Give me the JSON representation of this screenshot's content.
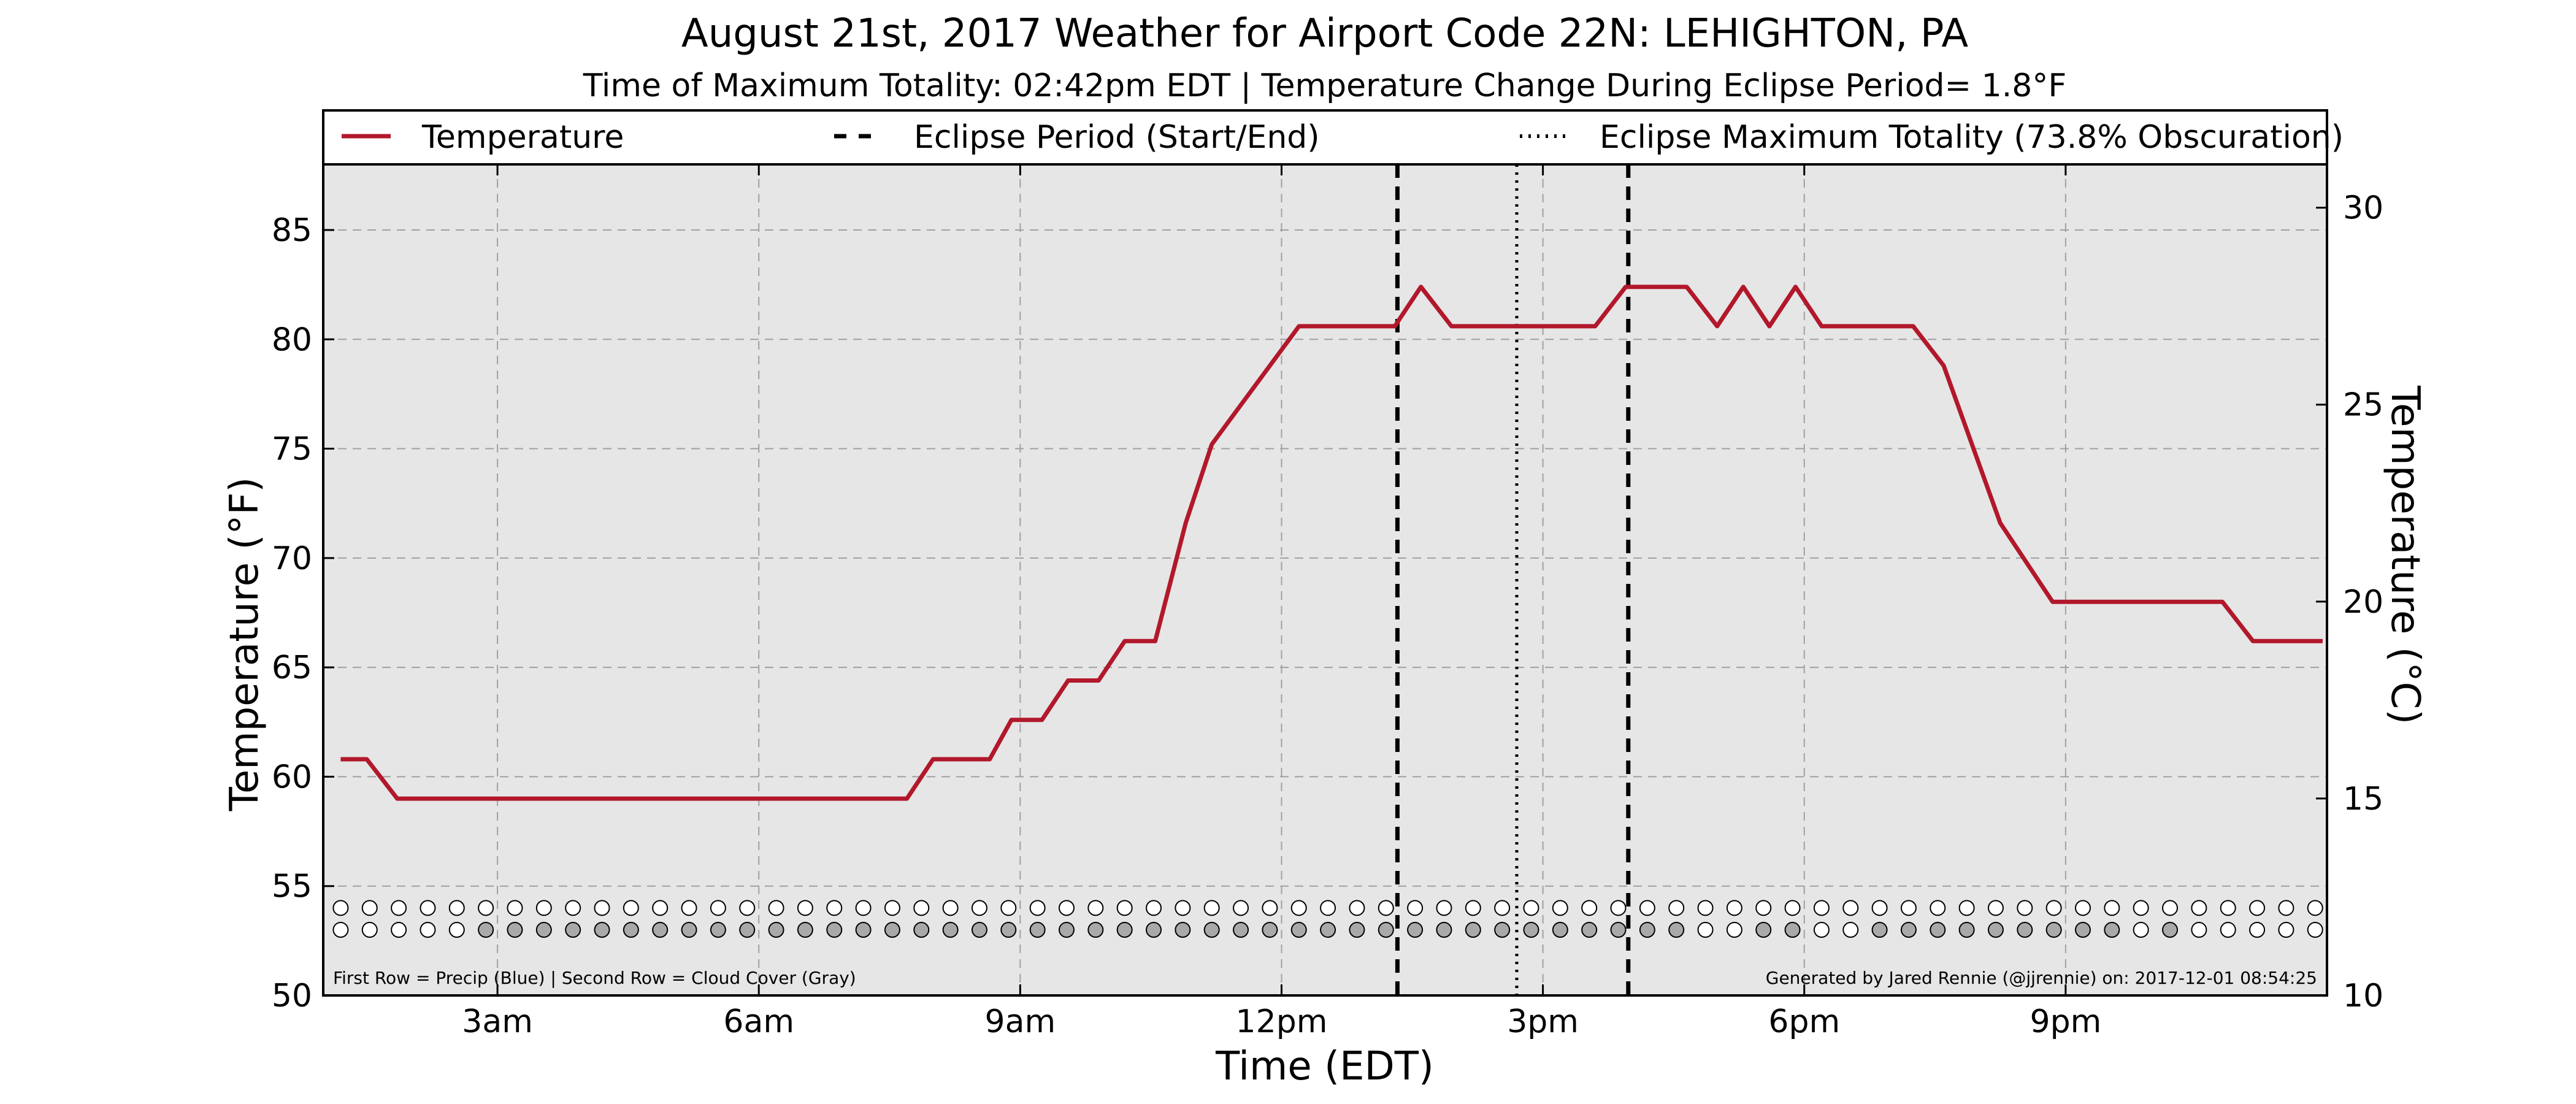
{
  "chart_data": {
    "type": "line",
    "title": "August 21st, 2017 Weather for Airport Code 22N: LEHIGHTON, PA",
    "subtitle": "Time of Maximum Totality: 02:42pm EDT | Temperature Change During Eclipse Period= 1.8°F",
    "xlabel": "Time (EDT)",
    "ylabel": "Temperature (°F)",
    "ylabel_right": "Temperature (°C)",
    "xlim": [
      1,
      24
    ],
    "ylim": [
      50,
      88
    ],
    "ylim_right": [
      10,
      31.1
    ],
    "x_ticks": [
      {
        "value": 3,
        "label": "3am"
      },
      {
        "value": 6,
        "label": "6am"
      },
      {
        "value": 9,
        "label": "9am"
      },
      {
        "value": 12,
        "label": "12pm"
      },
      {
        "value": 15,
        "label": "3pm"
      },
      {
        "value": 18,
        "label": "6pm"
      },
      {
        "value": 21,
        "label": "9pm"
      }
    ],
    "y_ticks": [
      50,
      55,
      60,
      65,
      70,
      75,
      80,
      85
    ],
    "y_ticks_right": [
      10,
      15,
      20,
      25,
      30
    ],
    "grid": true,
    "legend": {
      "placement": "top",
      "entries": [
        {
          "label": "Temperature",
          "style": "solid",
          "color": "#b2182b"
        },
        {
          "label": "Eclipse Period (Start/End)",
          "style": "dashed",
          "color": "#000000"
        },
        {
          "label": "Eclipse Maximum Totality (73.8% Obscuration)",
          "style": "dotted",
          "color": "#000000"
        }
      ]
    },
    "series": [
      {
        "name": "Temperature",
        "color": "#b2182b",
        "x": [
          1.2,
          1.5,
          1.85,
          7.7,
          8.0,
          8.35,
          8.65,
          8.9,
          9.25,
          9.55,
          9.9,
          10.2,
          10.55,
          10.9,
          11.2,
          12.2,
          13.3,
          13.6,
          13.95,
          14.3,
          15.6,
          15.95,
          16.3,
          16.65,
          17.0,
          17.3,
          17.6,
          17.9,
          18.2,
          18.5,
          19.25,
          19.6,
          20.25,
          20.85,
          22.8,
          23.15,
          23.95
        ],
        "y": [
          60.8,
          60.8,
          59.0,
          59.0,
          60.8,
          60.8,
          60.8,
          62.6,
          62.6,
          64.4,
          64.4,
          66.2,
          66.2,
          71.6,
          75.2,
          80.6,
          80.6,
          82.4,
          80.6,
          80.6,
          80.6,
          82.4,
          82.4,
          82.4,
          80.6,
          82.4,
          80.6,
          82.4,
          80.6,
          80.6,
          80.6,
          78.8,
          71.6,
          68.0,
          68.0,
          66.2,
          66.2
        ]
      }
    ],
    "eclipse_start": 13.33,
    "eclipse_end": 15.98,
    "eclipse_max": 14.7,
    "precip_row": {
      "label": "Precip (Blue)",
      "y": 54.0,
      "x_start": 1.2,
      "x_step": 0.3333,
      "filled": []
    },
    "cloud_row": {
      "label": "Cloud Cover (Gray)",
      "y": 53.0,
      "x_start": 1.2,
      "x_step": 0.3333,
      "filled": [
        5,
        6,
        7,
        8,
        9,
        10,
        11,
        12,
        13,
        14,
        15,
        16,
        17,
        18,
        19,
        20,
        21,
        22,
        23,
        24,
        25,
        26,
        27,
        28,
        29,
        30,
        31,
        32,
        33,
        34,
        35,
        36,
        37,
        38,
        39,
        40,
        41,
        42,
        43,
        44,
        45,
        46,
        49,
        50,
        53,
        54,
        55,
        56,
        57,
        58,
        59,
        60,
        61,
        63,
        77
      ]
    },
    "annotation_left": "First Row = Precip (Blue) | Second Row = Cloud Cover (Gray)",
    "annotation_right": "Generated by Jared Rennie (@jjrennie) on: 2017-12-01 08:54:25",
    "colors": {
      "temperature": "#b2182b",
      "plot_background": "#e6e6e6",
      "cloud_fill": "#a9a9a9",
      "precip_fill": "#1f77b4",
      "grid": "#a0a0a0"
    }
  }
}
